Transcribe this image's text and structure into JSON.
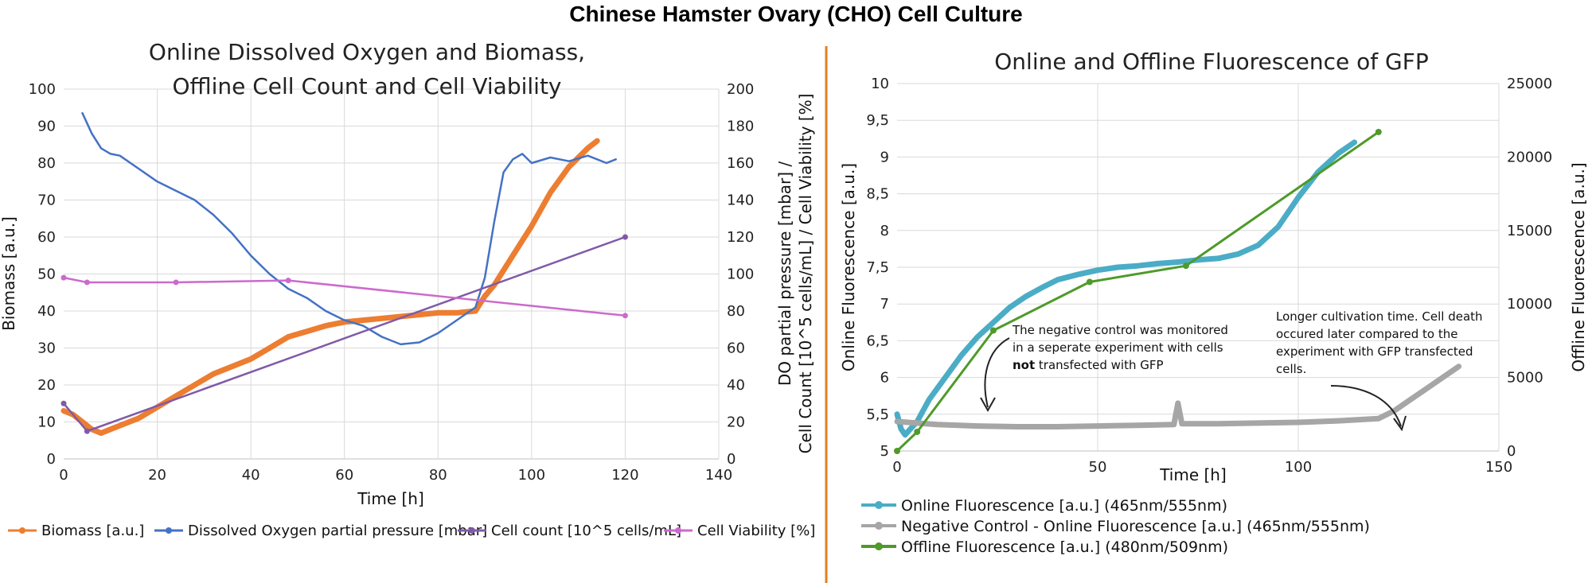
{
  "figure_title": "Chinese Hamster Ovary (CHO) Cell Culture",
  "colors": {
    "biomass": "#ED7D31",
    "dissolved_oxygen": "#4472C4",
    "cell_count": "#7F5AA8",
    "cell_viability": "#CC6ACC",
    "online_fluorescence": "#4BACC6",
    "negative_control": "#A6A6A6",
    "offline_fluorescence": "#4E9A2A",
    "divider": "#E67E22"
  },
  "chart_data": [
    {
      "type": "line",
      "title_lines": [
        "Online Dissolved Oxygen and Biomass,",
        "Offline Cell Count and Cell Viability"
      ],
      "xlabel": "Time [h]",
      "ylabel": "Biomass [a.u.]",
      "y2label_lines": [
        "DO partial pressure [mbar] /",
        "Cell Count [10^5 cells/mL] / Cell Viability [%]"
      ],
      "xlim": [
        0,
        140
      ],
      "ylim": [
        0,
        100
      ],
      "y2lim": [
        0,
        200
      ],
      "xticks": [
        "0",
        "20",
        "40",
        "60",
        "80",
        "100",
        "120",
        "140"
      ],
      "yticks": [
        "0",
        "10",
        "20",
        "30",
        "40",
        "50",
        "60",
        "70",
        "80",
        "90",
        "100"
      ],
      "y2ticks": [
        "0",
        "20",
        "40",
        "60",
        "80",
        "100",
        "120",
        "140",
        "160",
        "180",
        "200"
      ],
      "grid": true,
      "legend_position": "bottom",
      "series": [
        {
          "name": "Biomass [a.u.]",
          "axis": "left",
          "x": [
            0,
            2,
            4,
            6,
            8,
            10,
            12,
            16,
            20,
            24,
            28,
            32,
            36,
            40,
            44,
            48,
            52,
            56,
            60,
            64,
            68,
            72,
            76,
            80,
            84,
            88,
            90,
            92,
            96,
            100,
            104,
            108,
            112,
            114
          ],
          "y": [
            13,
            12,
            10,
            8,
            7,
            8,
            9,
            11,
            14,
            17,
            20,
            23,
            25,
            27,
            30,
            33,
            34.5,
            36,
            37,
            37.5,
            38,
            38.5,
            39,
            39.5,
            39.5,
            40,
            44,
            47,
            55,
            63,
            72,
            79,
            84,
            86
          ]
        },
        {
          "name": "Dissolved Oxygen partial pressure [mbar]",
          "axis": "right",
          "x": [
            4,
            6,
            8,
            10,
            12,
            16,
            20,
            24,
            28,
            32,
            36,
            40,
            44,
            48,
            52,
            56,
            60,
            64,
            68,
            72,
            76,
            80,
            84,
            88,
            90,
            92,
            94,
            96,
            98,
            100,
            104,
            108,
            112,
            116,
            118
          ],
          "y": [
            187,
            176,
            168,
            165,
            164,
            157,
            150,
            145,
            140,
            132,
            122,
            110,
            100,
            92,
            87,
            80,
            75,
            72,
            66,
            62,
            63,
            68,
            75,
            82,
            98,
            128,
            155,
            162,
            165,
            160,
            163,
            161,
            164,
            160,
            162
          ]
        },
        {
          "name": "Cell count [10^5 cells/mL]",
          "axis": "right",
          "x": [
            0,
            5,
            120
          ],
          "y": [
            30,
            15,
            120
          ]
        },
        {
          "name": "Cell Viability [%]",
          "axis": "right",
          "x": [
            0,
            5,
            24,
            48,
            120
          ],
          "y": [
            98,
            95.5,
            95.5,
            96.5,
            77.5
          ]
        }
      ]
    },
    {
      "type": "line",
      "title": "Online and Offline Fluorescence of GFP",
      "xlabel": "Time [h]",
      "ylabel": "Online Fluorescence [a.u.]",
      "y2label": "Offline Fluorescence [a.u.]",
      "xlim": [
        0,
        150
      ],
      "ylim": [
        5,
        10
      ],
      "y2lim": [
        0,
        25000
      ],
      "xticks": [
        "0",
        "50",
        "100",
        "150"
      ],
      "yticks": [
        "5",
        "5,5",
        "6",
        "6,5",
        "7",
        "7,5",
        "8",
        "8,5",
        "9",
        "9,5",
        "10"
      ],
      "y2ticks": [
        "0",
        "5000",
        "10000",
        "15000",
        "20000",
        "25000"
      ],
      "grid": true,
      "legend_position": "bottom",
      "series": [
        {
          "name": "Online Fluorescence [a.u.] (465nm/555nm)",
          "axis": "left",
          "x": [
            0,
            1,
            2,
            3,
            5,
            8,
            12,
            16,
            20,
            24,
            28,
            32,
            36,
            40,
            45,
            50,
            55,
            60,
            65,
            70,
            75,
            80,
            85,
            90,
            95,
            100,
            105,
            110,
            114
          ],
          "y": [
            5.5,
            5.3,
            5.22,
            5.28,
            5.4,
            5.7,
            6.0,
            6.3,
            6.55,
            6.75,
            6.95,
            7.1,
            7.22,
            7.33,
            7.4,
            7.46,
            7.5,
            7.52,
            7.55,
            7.57,
            7.6,
            7.62,
            7.68,
            7.8,
            8.05,
            8.45,
            8.8,
            9.05,
            9.2
          ]
        },
        {
          "name": "Negative Control - Online Fluorescence [a.u.] (465nm/555nm)",
          "axis": "left",
          "x": [
            0,
            5,
            10,
            20,
            30,
            40,
            50,
            60,
            69,
            70,
            71,
            80,
            90,
            100,
            110,
            120,
            124,
            128,
            132,
            136,
            140
          ],
          "y": [
            5.4,
            5.38,
            5.36,
            5.34,
            5.33,
            5.33,
            5.34,
            5.35,
            5.36,
            5.65,
            5.37,
            5.37,
            5.38,
            5.39,
            5.41,
            5.44,
            5.55,
            5.7,
            5.85,
            6.0,
            6.15
          ]
        },
        {
          "name": "Offline Fluorescence [a.u.] (480nm/509nm)",
          "axis": "right",
          "x": [
            0,
            5,
            24,
            48,
            72,
            120
          ],
          "y": [
            0,
            1300,
            8200,
            11500,
            12600,
            21700
          ]
        }
      ],
      "annotations": [
        {
          "lines": [
            [
              {
                "t": "The negative control was monitored"
              }
            ],
            [
              {
                "t": "in a seperate experiment with cells"
              }
            ],
            [
              {
                "t": "not",
                "bold": true
              },
              {
                "t": " transfected with GFP"
              }
            ]
          ]
        },
        {
          "lines": [
            [
              {
                "t": "Longer cultivation time. Cell death"
              }
            ],
            [
              {
                "t": "occured later compared to the"
              }
            ],
            [
              {
                "t": "experiment with GFP transfected"
              }
            ],
            [
              {
                "t": "cells."
              }
            ]
          ]
        }
      ]
    }
  ]
}
